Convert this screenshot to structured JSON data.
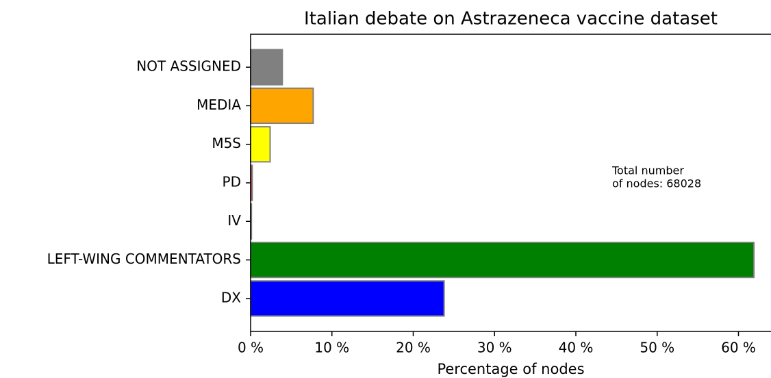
{
  "chart_data": {
    "type": "barh",
    "title": "Italian debate on Astrazeneca vaccine dataset",
    "xlabel": "Percentage of nodes",
    "categories": [
      "NOT ASSIGNED",
      "MEDIA",
      "M5S",
      "PD",
      "IV",
      "LEFT-WING COMMENTATORS",
      "DX"
    ],
    "values": [
      3.9,
      7.7,
      2.4,
      0.2,
      0.1,
      61.9,
      23.8
    ],
    "colors": [
      "#808080",
      "#ffa500",
      "#ffff00",
      "#ff0000",
      "#ff00ff",
      "#008000",
      "#0000ff"
    ],
    "edge_color": "#808080",
    "xlim": [
      0,
      64
    ],
    "xticks": [
      {
        "value": 0,
        "label": "0 %"
      },
      {
        "value": 10,
        "label": "10 %"
      },
      {
        "value": 20,
        "label": "20 %"
      },
      {
        "value": 30,
        "label": "30 %"
      },
      {
        "value": 40,
        "label": "40 %"
      },
      {
        "value": 50,
        "label": "50 %"
      },
      {
        "value": 60,
        "label": "60 %"
      }
    ],
    "annotation": [
      "Total number",
      "of nodes: 68028"
    ]
  }
}
